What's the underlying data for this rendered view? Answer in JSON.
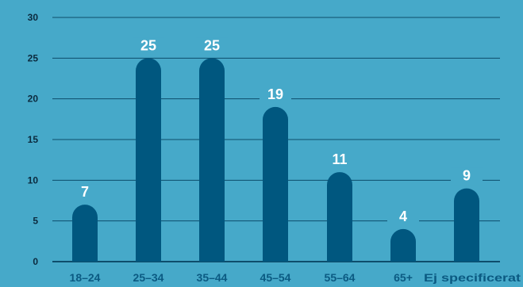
{
  "chart_data": {
    "type": "bar",
    "title": "",
    "xlabel": "",
    "ylabel": "",
    "categories": [
      "18–24",
      "25–34",
      "35–44",
      "45–54",
      "55–64",
      "65+",
      "Ej specificerat"
    ],
    "values": [
      7,
      25,
      25,
      19,
      11,
      4,
      9
    ],
    "data_labels": [
      "7",
      "25",
      "25",
      "19",
      "11",
      "4",
      "9"
    ],
    "ylim": [
      0,
      30
    ],
    "yticks": [
      0,
      5,
      10,
      15,
      20,
      25,
      30
    ],
    "grid": true,
    "legend": "none",
    "colors": {
      "background": "#46a9c9",
      "bar": "#00577f",
      "gridline": "#0e4d6b",
      "data_label": "#ffffff",
      "y_tick_text": "#0b2a3e",
      "x_tick_text": "#0b5a82"
    }
  }
}
